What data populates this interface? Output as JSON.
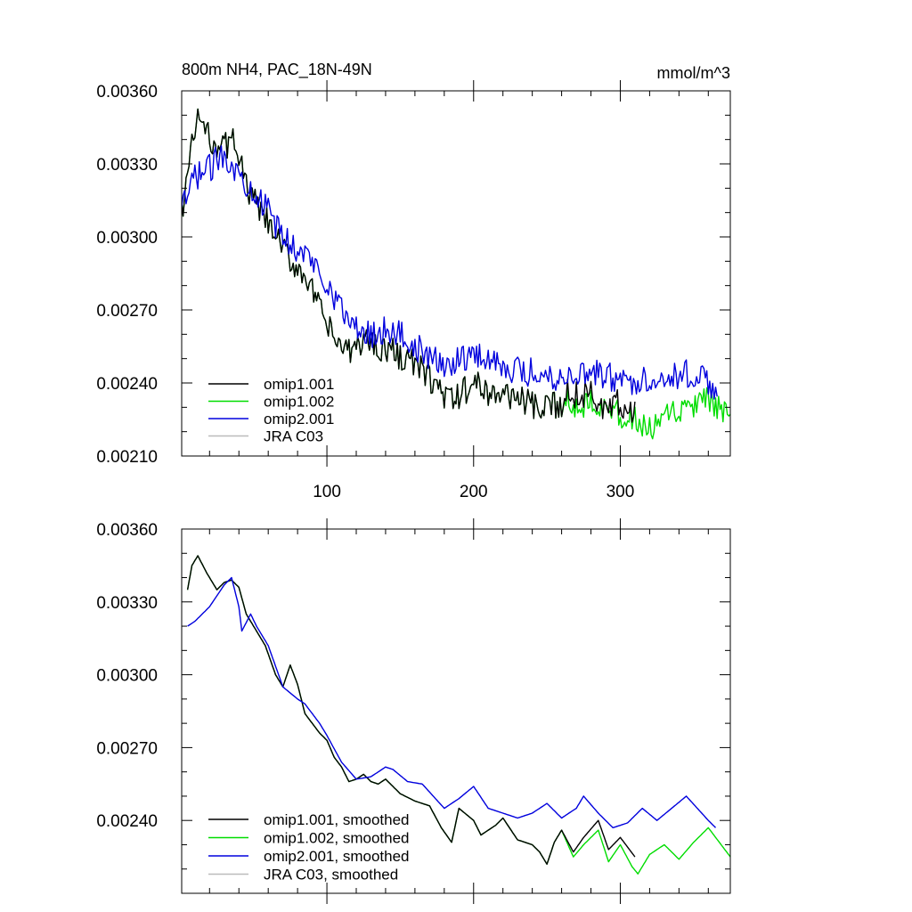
{
  "chart_data": [
    {
      "type": "line",
      "title": "800m NH4, PAC_18N-49N",
      "units": "mmol/m^3",
      "xlim": [
        1,
        375
      ],
      "ylim": [
        0.0021,
        0.0036
      ],
      "xticks": [
        100,
        200,
        300
      ],
      "yticks": [
        0.0021,
        0.0024,
        0.0027,
        0.003,
        0.0033,
        0.0036
      ],
      "ytick_labels": [
        "0.00210",
        "0.00240",
        "0.00270",
        "0.00300",
        "0.00330",
        "0.00360"
      ],
      "xtick_labels": [
        "100",
        "200",
        "300"
      ],
      "legend": [
        "omip1.001",
        "omip1.002",
        "omip2.001",
        "JRA C03"
      ],
      "series": [
        {
          "name": "omip1.001",
          "color": "#000000",
          "noise": 6e-05,
          "x": [
            1,
            6,
            12,
            20,
            30,
            38,
            45,
            55,
            65,
            75,
            85,
            95,
            105,
            115,
            125,
            140,
            155,
            170,
            185,
            200,
            215,
            230,
            245,
            260,
            270,
            280,
            290,
            300,
            310
          ],
          "y": [
            0.0031,
            0.0033,
            0.0035,
            0.0034,
            0.00337,
            0.0034,
            0.0032,
            0.0031,
            0.003,
            0.0029,
            0.00285,
            0.0027,
            0.00258,
            0.00252,
            0.00258,
            0.00254,
            0.0025,
            0.00242,
            0.00232,
            0.0024,
            0.00235,
            0.00235,
            0.00228,
            0.00232,
            0.00235,
            0.00237,
            0.00232,
            0.00232,
            0.00228
          ]
        },
        {
          "name": "omip1.002",
          "color": "#00dd00",
          "noise": 6e-05,
          "x": [
            1,
            6,
            12,
            20,
            30,
            38,
            45,
            55,
            65,
            75,
            85,
            95,
            105,
            115,
            125,
            140,
            155,
            170,
            185,
            200,
            215,
            230,
            245,
            260,
            270,
            280,
            290,
            300,
            310,
            320,
            330,
            340,
            350,
            360,
            370,
            375
          ],
          "y": [
            0.0031,
            0.0033,
            0.0035,
            0.0034,
            0.00337,
            0.0034,
            0.0032,
            0.0031,
            0.003,
            0.0029,
            0.00285,
            0.0027,
            0.00258,
            0.00252,
            0.00258,
            0.00254,
            0.0025,
            0.00242,
            0.00232,
            0.0024,
            0.00235,
            0.00235,
            0.00228,
            0.00232,
            0.0023,
            0.00233,
            0.00232,
            0.00226,
            0.00225,
            0.0022,
            0.00225,
            0.00228,
            0.0023,
            0.00233,
            0.00228,
            0.00222
          ]
        },
        {
          "name": "omip2.001",
          "color": "#0000dd",
          "noise": 6e-05,
          "x": [
            1,
            10,
            20,
            30,
            40,
            50,
            60,
            70,
            80,
            90,
            100,
            110,
            120,
            130,
            140,
            150,
            160,
            170,
            180,
            190,
            200,
            215,
            230,
            245,
            260,
            275,
            290,
            305,
            320,
            335,
            350,
            360,
            366
          ],
          "y": [
            0.0031,
            0.00325,
            0.00328,
            0.00335,
            0.00325,
            0.0032,
            0.0031,
            0.003,
            0.00295,
            0.0029,
            0.00282,
            0.0027,
            0.00262,
            0.0026,
            0.00262,
            0.0026,
            0.00255,
            0.0025,
            0.00247,
            0.0025,
            0.00252,
            0.00249,
            0.00245,
            0.00244,
            0.00242,
            0.00245,
            0.00243,
            0.0024,
            0.00242,
            0.00243,
            0.00244,
            0.0024,
            0.00238
          ]
        },
        {
          "name": "JRA C03",
          "color": "#bbbbbb",
          "noise": 0,
          "x": [],
          "y": []
        }
      ]
    },
    {
      "type": "line",
      "title": "",
      "xlim": [
        1,
        375
      ],
      "ylim": [
        0.0021,
        0.0036
      ],
      "xticks": [
        100,
        200,
        300
      ],
      "yticks": [
        0.0024,
        0.0027,
        0.003,
        0.0033,
        0.0036
      ],
      "ytick_labels": [
        "0.00240",
        "0.00270",
        "0.00300",
        "0.00330",
        "0.00360"
      ],
      "legend": [
        "omip1.001, smoothed",
        "omip1.002, smoothed",
        "omip2.001, smoothed",
        "JRA C03, smoothed"
      ],
      "series": [
        {
          "name": "omip1.001, smoothed",
          "color": "#000000",
          "x": [
            5,
            8,
            12,
            18,
            25,
            30,
            35,
            40,
            45,
            50,
            58,
            65,
            70,
            75,
            80,
            85,
            95,
            100,
            105,
            110,
            115,
            120,
            125,
            130,
            135,
            140,
            150,
            160,
            170,
            178,
            185,
            190,
            200,
            205,
            210,
            215,
            220,
            230,
            240,
            245,
            250,
            255,
            260,
            268,
            275,
            285,
            292,
            300,
            310
          ],
          "y": [
            0.00335,
            0.00345,
            0.00349,
            0.00342,
            0.00335,
            0.00338,
            0.00339,
            0.00336,
            0.00325,
            0.0032,
            0.00312,
            0.003,
            0.00295,
            0.00304,
            0.00296,
            0.00284,
            0.00276,
            0.00273,
            0.00266,
            0.00262,
            0.00256,
            0.00257,
            0.00259,
            0.00256,
            0.00255,
            0.00257,
            0.00251,
            0.00248,
            0.00246,
            0.00237,
            0.00231,
            0.00245,
            0.0024,
            0.00234,
            0.00236,
            0.00238,
            0.00241,
            0.00232,
            0.0023,
            0.00227,
            0.00222,
            0.00231,
            0.00236,
            0.00227,
            0.00233,
            0.0024,
            0.00228,
            0.00233,
            0.00225
          ]
        },
        {
          "name": "omip1.002, smoothed",
          "color": "#00dd00",
          "x": [
            5,
            8,
            12,
            18,
            25,
            30,
            35,
            40,
            45,
            50,
            58,
            65,
            70,
            75,
            80,
            85,
            95,
            100,
            105,
            110,
            115,
            120,
            125,
            130,
            135,
            140,
            150,
            160,
            170,
            178,
            185,
            190,
            200,
            205,
            210,
            215,
            220,
            230,
            240,
            245,
            250,
            255,
            260,
            268,
            275,
            285,
            292,
            300,
            308,
            312,
            320,
            330,
            340,
            350,
            360,
            370,
            375
          ],
          "y": [
            0.00335,
            0.00345,
            0.00349,
            0.00342,
            0.00335,
            0.00338,
            0.00339,
            0.00336,
            0.00325,
            0.0032,
            0.00312,
            0.003,
            0.00295,
            0.00304,
            0.00296,
            0.00284,
            0.00276,
            0.00273,
            0.00266,
            0.00262,
            0.00256,
            0.00257,
            0.00259,
            0.00256,
            0.00255,
            0.00257,
            0.00251,
            0.00248,
            0.00246,
            0.00237,
            0.00231,
            0.00245,
            0.0024,
            0.00234,
            0.00236,
            0.00238,
            0.00241,
            0.00232,
            0.0023,
            0.00227,
            0.00222,
            0.00231,
            0.00236,
            0.00225,
            0.0023,
            0.00236,
            0.00223,
            0.0023,
            0.00221,
            0.00218,
            0.00226,
            0.0023,
            0.00224,
            0.00231,
            0.00237,
            0.00229,
            0.00225
          ]
        },
        {
          "name": "omip2.001, smoothed",
          "color": "#0000dd",
          "x": [
            5,
            10,
            20,
            30,
            35,
            40,
            42,
            48,
            52,
            60,
            70,
            80,
            85,
            95,
            100,
            110,
            120,
            130,
            140,
            145,
            155,
            165,
            180,
            190,
            200,
            210,
            220,
            230,
            240,
            250,
            260,
            270,
            275,
            285,
            295,
            305,
            315,
            325,
            335,
            345,
            360,
            365
          ],
          "y": [
            0.0032,
            0.00322,
            0.00328,
            0.00337,
            0.0034,
            0.00328,
            0.00318,
            0.00325,
            0.0032,
            0.00312,
            0.00295,
            0.0029,
            0.00288,
            0.0028,
            0.00275,
            0.00264,
            0.00257,
            0.00258,
            0.00262,
            0.00261,
            0.00256,
            0.00255,
            0.00245,
            0.00249,
            0.00254,
            0.00245,
            0.00243,
            0.00241,
            0.00243,
            0.00247,
            0.00241,
            0.00245,
            0.0025,
            0.00243,
            0.00237,
            0.00239,
            0.00245,
            0.0024,
            0.00245,
            0.0025,
            0.0024,
            0.00237
          ]
        },
        {
          "name": "JRA C03, smoothed",
          "color": "#bbbbbb",
          "x": [],
          "y": []
        }
      ]
    }
  ]
}
